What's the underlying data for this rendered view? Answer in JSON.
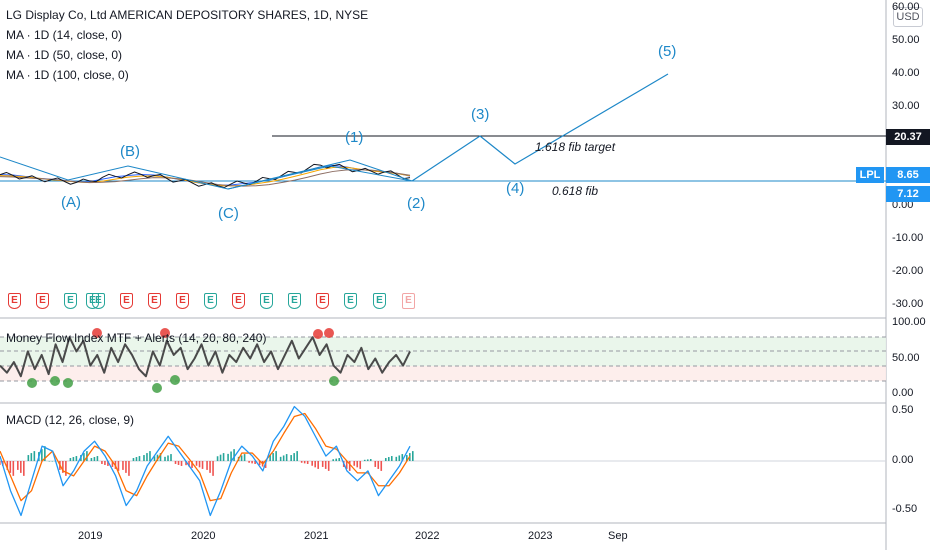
{
  "header": {
    "title": "LG Display Co, Ltd AMERICAN DEPOSITORY SHARES, 1D, NYSE",
    "ma_lines": [
      "MA · 1D (14, close, 0)",
      "MA · 1D (50, close, 0)",
      "MA · 1D (100, close, 0)"
    ],
    "currency": "USD"
  },
  "price_tags": {
    "target": "20.37",
    "symbol": "LPL",
    "current": "8.65",
    "fib_level": "7.12"
  },
  "annotations": {
    "wave_a": "(A)",
    "wave_b": "(B)",
    "wave_c": "(C)",
    "wave_1": "(1)",
    "wave_2": "(2)",
    "wave_3": "(3)",
    "wave_4": "(4)",
    "wave_5": "(5)",
    "fib_target": "1.618 fib target",
    "fib_retrace": "0.618 fib"
  },
  "earnings_markers": {
    "label": "E",
    "kinds": [
      "red",
      "red",
      "green",
      "green",
      "green",
      "red",
      "red",
      "red",
      "green",
      "red",
      "green",
      "green",
      "red",
      "green",
      "green",
      "future"
    ]
  },
  "indicators": {
    "mfi_title": "Money Flow Index MTF + Alerts (14, 20, 80, 240)",
    "macd_title": "MACD (12, 26, close, 9)"
  },
  "colors": {
    "wave_line": "#1e88c8",
    "ma14": "#2962ff",
    "ma50": "#f7a600",
    "ma100": "#8d6e63",
    "price": "#131722",
    "macd_line": "#2196f3",
    "signal_line": "#ff6d00",
    "hist_pos": "#26a69a",
    "hist_neg": "#ef5350"
  },
  "chart_data": [
    {
      "type": "line",
      "name": "main-price-pane",
      "y_ticks": [
        "60.00",
        "50.00",
        "40.00",
        "30.00",
        "20.00",
        "10.00",
        "0.00",
        "-10.00",
        "-20.00",
        "-30.00"
      ],
      "ylim": [
        -33,
        62
      ],
      "x_ticks": [
        "2019",
        "2020",
        "2021",
        "2022",
        "2023",
        "Sep"
      ],
      "series": [
        {
          "values": [
            9.5,
            9.3,
            8.6,
            8.2,
            8.0,
            7.5,
            7.2,
            7.6,
            8.7,
            9.0,
            9.5,
            9.6,
            9.2,
            8.4,
            7.6,
            7.0,
            6.5,
            6.1,
            6.6,
            7.0,
            7.5,
            8.3,
            9.3,
            10.2,
            11.3,
            12.4,
            12.2,
            11.5,
            10.8,
            10.5,
            10.3,
            9.5,
            8.6
          ]
        }
      ],
      "wave_points": [
        {
          "label": "(A)",
          "date": "2018-07",
          "price": 7.2
        },
        {
          "label": "(B)",
          "date": "2019-04",
          "price": 9.6
        },
        {
          "label": "(C)",
          "date": "2020-02",
          "price": 6.1
        },
        {
          "label": "(1)",
          "date": "2021-03",
          "price": 13.7
        },
        {
          "label": "(2)",
          "date": "2021-11",
          "price": 7.12
        },
        {
          "label": "(3)",
          "date": "2022-06",
          "price": 20.37
        },
        {
          "label": "(4)",
          "date": "2022-11",
          "price": 11.0
        },
        {
          "label": "(5)",
          "date": "2023-11",
          "price": 39.5
        }
      ],
      "hlines": [
        20.37,
        7.12
      ]
    },
    {
      "type": "line",
      "name": "money-flow-index",
      "y_ticks": [
        "100.00",
        "50.00",
        "0.00"
      ],
      "ylim": [
        0,
        100
      ],
      "bands": [
        20,
        80
      ],
      "series": [
        {
          "values": [
            40,
            30,
            45,
            25,
            60,
            35,
            55,
            28,
            70,
            45,
            80,
            60,
            75,
            40,
            55,
            30,
            65,
            45,
            70,
            55,
            35,
            25,
            60,
            40,
            75,
            55,
            65,
            35,
            50,
            70,
            40,
            60,
            30,
            55,
            45,
            65,
            50,
            70,
            45,
            60,
            35,
            55,
            75,
            50,
            65,
            80,
            55,
            70,
            40,
            30,
            55,
            45,
            65,
            35,
            50,
            30,
            45,
            55,
            40,
            60
          ]
        }
      ]
    },
    {
      "type": "line",
      "name": "macd",
      "y_ticks": [
        "0.50",
        "0.00",
        "-0.50"
      ],
      "ylim": [
        -0.6,
        0.62
      ],
      "series": [
        {
          "name": "MACD",
          "values": [
            0.05,
            -0.3,
            -0.55,
            -0.2,
            0.15,
            0.1,
            -0.25,
            -0.1,
            0.1,
            0.2,
            0.05,
            -0.15,
            -0.45,
            -0.3,
            -0.05,
            0.1,
            0.25,
            0.1,
            -0.05,
            -0.2,
            -0.55,
            -0.3,
            0.0,
            0.15,
            0.05,
            -0.1,
            0.2,
            0.35,
            0.55,
            0.45,
            0.25,
            0.05,
            0.15,
            -0.1,
            -0.2,
            -0.1,
            -0.35,
            -0.2,
            -0.05,
            0.15
          ]
        },
        {
          "name": "Signal",
          "values": [
            0.1,
            -0.15,
            -0.4,
            -0.3,
            0.0,
            0.1,
            -0.1,
            -0.15,
            0.0,
            0.15,
            0.1,
            -0.05,
            -0.3,
            -0.35,
            -0.15,
            0.02,
            0.18,
            0.15,
            0.02,
            -0.12,
            -0.4,
            -0.38,
            -0.12,
            0.08,
            0.08,
            -0.03,
            0.1,
            0.28,
            0.45,
            0.48,
            0.33,
            0.15,
            0.12,
            0.0,
            -0.12,
            -0.12,
            -0.25,
            -0.25,
            -0.12,
            0.05
          ]
        }
      ]
    }
  ]
}
